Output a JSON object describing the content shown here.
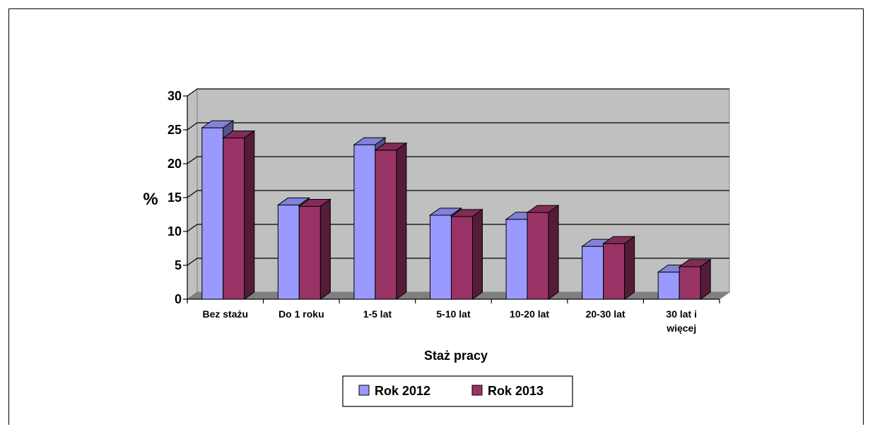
{
  "chart_data": {
    "type": "bar",
    "title": "",
    "xlabel": "Staż pracy",
    "ylabel": "%",
    "ylim": [
      0,
      30
    ],
    "yticks": [
      0,
      5,
      10,
      15,
      20,
      25,
      30
    ],
    "categories": [
      "Bez stażu",
      "Do 1 roku",
      "1-5 lat",
      "5-10 lat",
      "10-20 lat",
      "20-30 lat",
      "30 lat i więcej"
    ],
    "category_lines": [
      [
        "Bez stażu"
      ],
      [
        "Do 1 roku"
      ],
      [
        "1-5 lat"
      ],
      [
        "5-10 lat"
      ],
      [
        "10-20 lat"
      ],
      [
        "20-30 lat"
      ],
      [
        "30 lat i",
        "więcej"
      ]
    ],
    "series": [
      {
        "name": "Rok 2012",
        "color": "#9999ff",
        "values": [
          25.3,
          13.9,
          22.8,
          12.4,
          11.8,
          7.8,
          4.0
        ]
      },
      {
        "name": "Rok 2013",
        "color": "#993366",
        "values": [
          23.8,
          13.7,
          22.0,
          12.2,
          12.8,
          8.2,
          4.8
        ]
      }
    ],
    "grid": true,
    "style": "3d-clustered-column",
    "legend_position": "bottom"
  }
}
